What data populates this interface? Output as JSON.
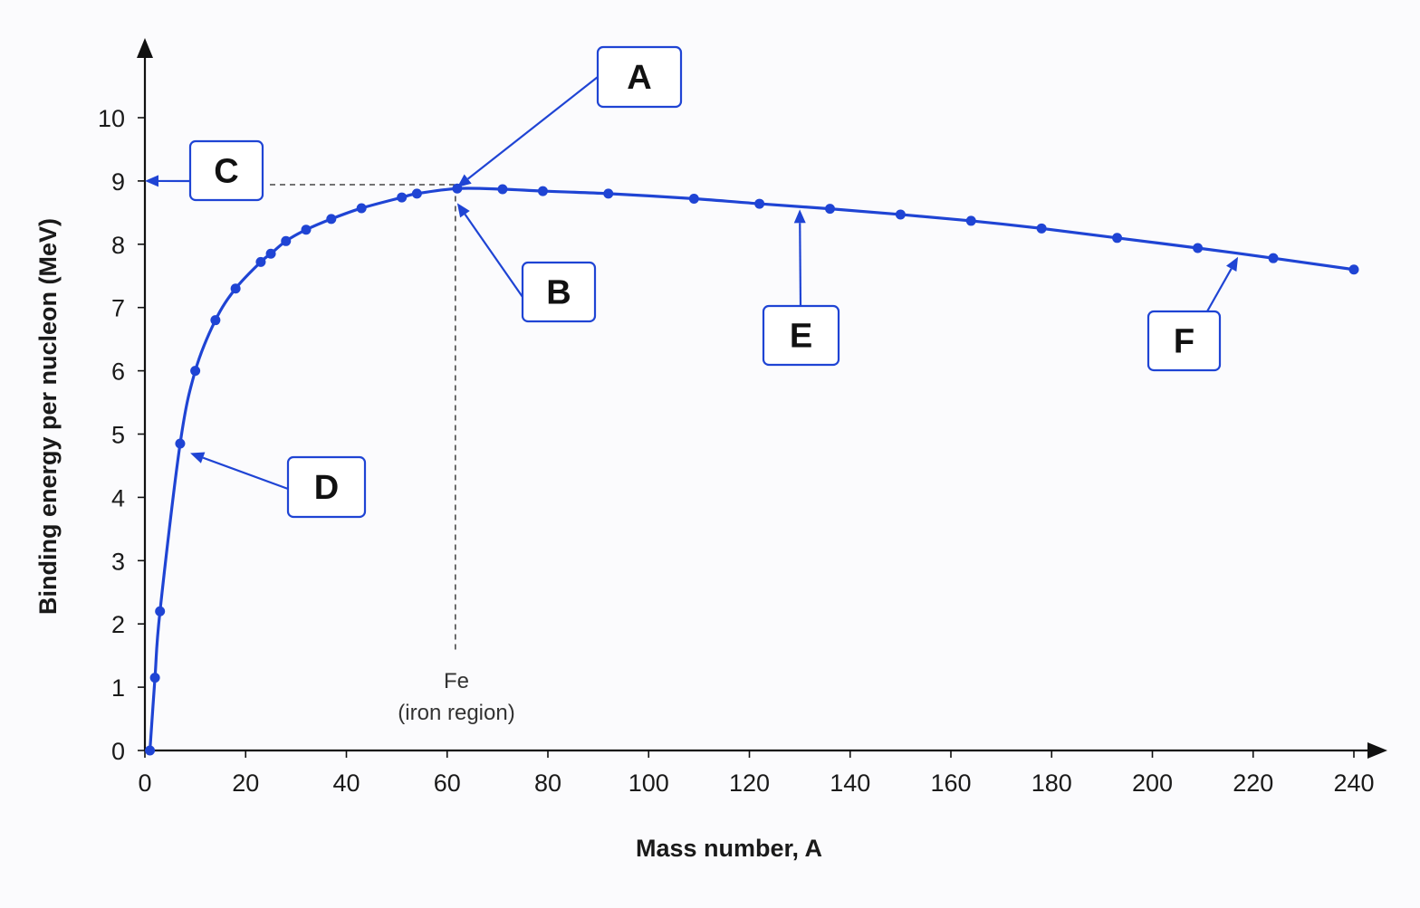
{
  "chart_data": {
    "type": "line",
    "xlabel": "Mass number, A",
    "ylabel": "Binding energy per nucleon (MeV)",
    "xlim": [
      0,
      240
    ],
    "ylim": [
      0,
      10
    ],
    "x_ticks": [
      "0",
      "20",
      "40",
      "60",
      "80",
      "100",
      "120",
      "140",
      "160",
      "180",
      "200",
      "220",
      "240"
    ],
    "y_ticks": [
      "0",
      "1",
      "2",
      "3",
      "4",
      "5",
      "6",
      "7",
      "8",
      "9",
      "10"
    ],
    "grid": false,
    "legend": "none",
    "colors": {
      "series": "#1f44d4",
      "axes": "#111111"
    },
    "series": [
      {
        "x": [
          1,
          2,
          3,
          7,
          10,
          14,
          18,
          23,
          25,
          28,
          32,
          37,
          43,
          51,
          54,
          62,
          71,
          79,
          92,
          109,
          122,
          136,
          150,
          164,
          178,
          193,
          209,
          224,
          240
        ],
        "y": [
          0,
          1.15,
          2.2,
          4.85,
          6.0,
          6.8,
          7.3,
          7.72,
          7.85,
          8.05,
          8.23,
          8.4,
          8.57,
          8.74,
          8.8,
          8.88,
          8.87,
          8.84,
          8.8,
          8.72,
          8.64,
          8.56,
          8.47,
          8.37,
          8.25,
          8.1,
          7.94,
          7.78,
          7.6
        ]
      }
    ],
    "annotations": {
      "fe_label": "Fe",
      "fe_sublabel": "(iron region)",
      "fe_x": 62,
      "peak_y": 8.92
    },
    "callouts": [
      {
        "id": "A",
        "label": "A",
        "target": [
          62,
          8.9
        ]
      },
      {
        "id": "B",
        "label": "B",
        "target": [
          62,
          8.65
        ]
      },
      {
        "id": "C",
        "label": "C",
        "target": [
          0,
          9.0
        ]
      },
      {
        "id": "D",
        "label": "D",
        "target": [
          9,
          4.7
        ]
      },
      {
        "id": "E",
        "label": "E",
        "target": [
          130,
          8.55
        ]
      },
      {
        "id": "F",
        "label": "F",
        "target": [
          217,
          7.8
        ]
      }
    ]
  }
}
